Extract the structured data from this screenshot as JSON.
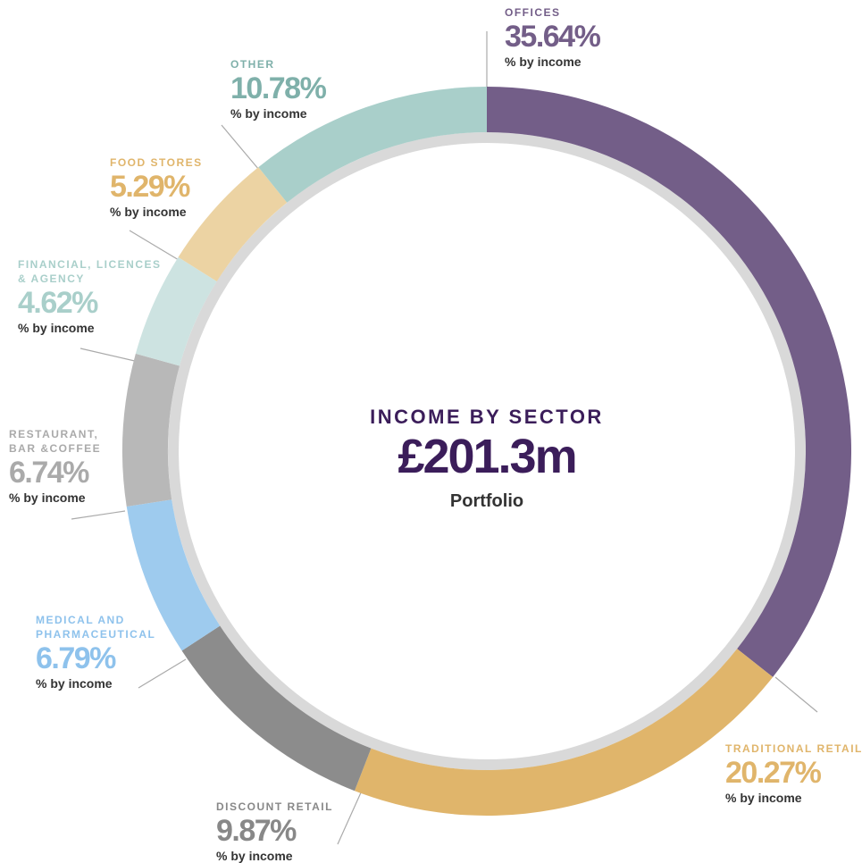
{
  "chart_data": {
    "type": "donut",
    "title": "INCOME BY SECTOR",
    "center_value": "£201.3m",
    "center_label": "Portfolio",
    "sublabel": "% by income",
    "categories": [
      "OFFICES",
      "TRADITIONAL RETAIL",
      "DISCOUNT RETAIL",
      "MEDICAL AND PHARMACEUTICAL",
      "RESTAURANT, BAR &COFFEE",
      "FINANCIAL, LICENCES & AGENCY",
      "FOOD STORES",
      "OTHER"
    ],
    "values": [
      35.64,
      20.27,
      9.87,
      6.79,
      6.74,
      4.62,
      5.29,
      10.78
    ],
    "value_labels": [
      "35.64%",
      "20.27%",
      "9.87%",
      "6.79%",
      "6.74%",
      "4.62%",
      "5.29%",
      "10.78%"
    ],
    "colors": [
      "#735e88",
      "#e0b56b",
      "#8c8c8c",
      "#9ecbee",
      "#b8b8b8",
      "#cde3e1",
      "#ecd3a3",
      "#a9cfca"
    ],
    "label_colors": [
      "#735e88",
      "#e0b56b",
      "#888888",
      "#8ec2ec",
      "#aaaaaa",
      "#a9cfca",
      "#e0b56b",
      "#7fb0aa"
    ]
  }
}
